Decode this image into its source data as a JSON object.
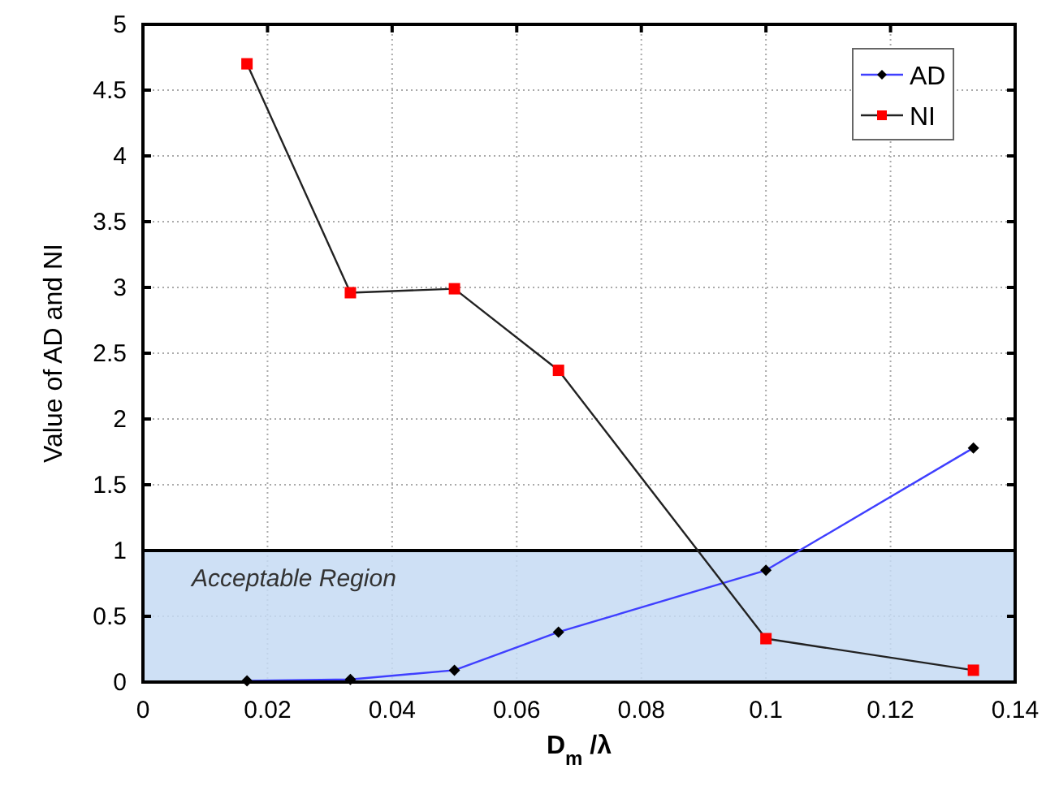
{
  "chart_data": {
    "type": "line",
    "xlabel": "D$_{m}$ /λ",
    "ylabel": "Value of AD and NI",
    "x": [
      0.0167,
      0.0333,
      0.05,
      0.0667,
      0.1,
      0.1333
    ],
    "series": [
      {
        "name": "AD",
        "color": "#3f3fff",
        "marker": "diamond",
        "colors": [
          "#000000",
          "#000000",
          "#000000",
          "#000000",
          "#000000",
          "#000000"
        ],
        "values": [
          0.01,
          0.02,
          0.09,
          0.38,
          0.85,
          1.78
        ]
      },
      {
        "name": "NI",
        "color": "#222222",
        "marker": "square",
        "colors": [
          "#ff0000",
          "#ff0000",
          "#ff0000",
          "#ff0000",
          "#ff0000",
          "#ff0000"
        ],
        "values": [
          4.7,
          2.96,
          2.99,
          2.37,
          0.33,
          0.09
        ]
      }
    ],
    "xlim": [
      0,
      0.14
    ],
    "xticks": [
      0,
      0.02,
      0.04,
      0.06,
      0.08,
      0.1,
      0.12,
      0.14
    ],
    "ylim": [
      0,
      5
    ],
    "yticks": [
      0,
      0.5,
      1,
      1.5,
      2,
      2.5,
      3,
      3.5,
      4,
      4.5,
      5
    ],
    "bands": [
      {
        "axis": "y",
        "from": 0,
        "to": 1,
        "label": "Acceptable Region",
        "color": "#c6daf3"
      }
    ],
    "grid": true,
    "legend": "top right",
    "line_style": "solid"
  }
}
